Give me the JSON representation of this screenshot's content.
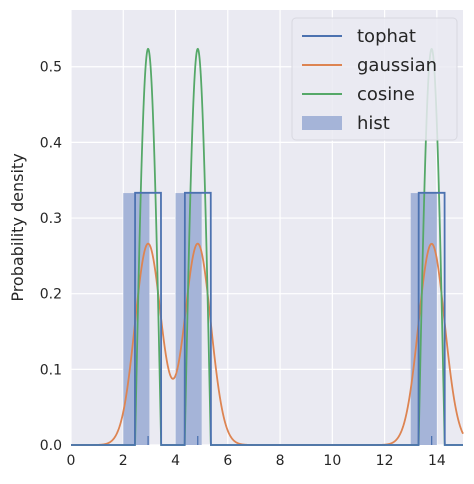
{
  "chart_data": {
    "type": "line",
    "title": "",
    "xlabel": "",
    "ylabel": "Probability density",
    "xlim": [
      0,
      15
    ],
    "ylim": [
      0,
      0.575
    ],
    "xticks": [
      0,
      2,
      4,
      6,
      8,
      10,
      12,
      14
    ],
    "yticks": [
      0.0,
      0.1,
      0.2,
      0.3,
      0.4,
      0.5
    ],
    "xtick_labels": [
      "0",
      "2",
      "4",
      "6",
      "8",
      "10",
      "12",
      "14"
    ],
    "ytick_labels": [
      "0.0",
      "0.1",
      "0.2",
      "0.3",
      "0.4",
      "0.5"
    ],
    "grid": true,
    "legend_position": "top-right",
    "samples": [
      2.95,
      4.85,
      13.8
    ],
    "kernel_bandwidth": 0.5,
    "histogram": {
      "name": "hist",
      "bins": [
        {
          "x0": 2.0,
          "x1": 3.0,
          "density": 0.333
        },
        {
          "x0": 4.0,
          "x1": 5.0,
          "density": 0.333
        },
        {
          "x0": 13.0,
          "x1": 14.0,
          "density": 0.333
        }
      ],
      "color": "#a5b4d8"
    },
    "series": [
      {
        "name": "tophat",
        "kernel": "tophat",
        "color": "#4c72b0"
      },
      {
        "name": "gaussian",
        "kernel": "gaussian",
        "color": "#dd8452"
      },
      {
        "name": "cosine",
        "kernel": "cosine",
        "color": "#55a868"
      }
    ],
    "rug_color": "#4c72b0"
  }
}
